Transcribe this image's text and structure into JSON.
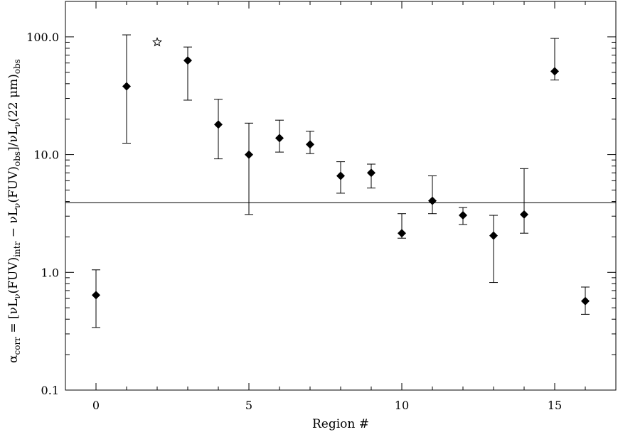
{
  "chart_data": {
    "type": "scatter",
    "xlabel": "Region #",
    "ylabel_parts": {
      "alpha": "α",
      "corr": "corr",
      "eq_open": " = [",
      "nu1": "ν",
      "L1": "L",
      "nu_sub1": "ν",
      "fuv1": "(FUV)",
      "intr": "intr",
      "minus": " − ",
      "nu2": "ν",
      "L2": "L",
      "nu_sub2": "ν",
      "fuv2": "(FUV)",
      "obs1": "obs",
      "close_slash": "]/",
      "nu3": "ν",
      "L3": "L",
      "nu_sub3": "ν",
      "wave_open": "(22 ",
      "mu": "μ",
      "wave_close": "m)",
      "obs2": "obs"
    },
    "xlim": [
      -1,
      17
    ],
    "ylim": [
      0.1,
      200
    ],
    "yscale": "log",
    "x_ticks": [
      0,
      5,
      10,
      15
    ],
    "x_tick_labels": [
      "0",
      "5",
      "10",
      "15"
    ],
    "y_ticks": [
      0.1,
      1,
      10,
      100
    ],
    "y_tick_labels": [
      "0.1",
      "1.0",
      "10.0",
      "100.0"
    ],
    "reference_line": 3.9,
    "grid": false,
    "points": [
      {
        "x": 0,
        "y": 0.64,
        "lo": 0.34,
        "hi": 1.05
      },
      {
        "x": 1,
        "y": 38,
        "lo": 12.5,
        "hi": 104
      },
      {
        "x": 3,
        "y": 63,
        "lo": 29,
        "hi": 82
      },
      {
        "x": 4,
        "y": 18,
        "lo": 9.2,
        "hi": 29.5
      },
      {
        "x": 5,
        "y": 10,
        "lo": 3.1,
        "hi": 18.5
      },
      {
        "x": 6,
        "y": 13.8,
        "lo": 10.5,
        "hi": 19.6
      },
      {
        "x": 7,
        "y": 12.2,
        "lo": 10.2,
        "hi": 15.8
      },
      {
        "x": 8,
        "y": 6.6,
        "lo": 4.7,
        "hi": 8.7
      },
      {
        "x": 9,
        "y": 7,
        "lo": 5.2,
        "hi": 8.3
      },
      {
        "x": 10,
        "y": 2.15,
        "lo": 1.95,
        "hi": 3.15
      },
      {
        "x": 11,
        "y": 4.05,
        "lo": 3.15,
        "hi": 6.6
      },
      {
        "x": 12,
        "y": 3.05,
        "lo": 2.55,
        "hi": 3.55
      },
      {
        "x": 13,
        "y": 2.05,
        "lo": 0.82,
        "hi": 3.05
      },
      {
        "x": 14,
        "y": 3.1,
        "lo": 2.15,
        "hi": 7.6
      },
      {
        "x": 15,
        "y": 51,
        "lo": 43,
        "hi": 97
      },
      {
        "x": 16,
        "y": 0.57,
        "lo": 0.44,
        "hi": 0.75
      }
    ],
    "special_points": [
      {
        "x": 2,
        "y": 90,
        "marker": "open-star"
      }
    ]
  }
}
